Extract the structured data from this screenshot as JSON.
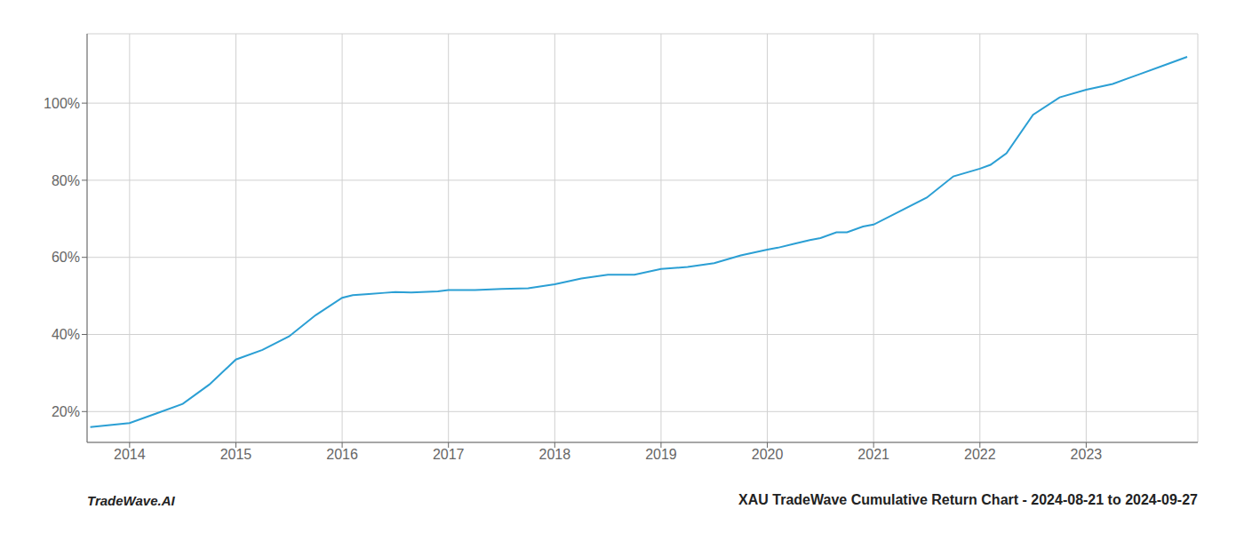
{
  "chart_data": {
    "type": "line",
    "x": [
      2013.63,
      2014.0,
      2014.25,
      2014.5,
      2014.75,
      2015.0,
      2015.25,
      2015.5,
      2015.75,
      2016.0,
      2016.1,
      2016.25,
      2016.4,
      2016.5,
      2016.65,
      2016.75,
      2016.9,
      2017.0,
      2017.25,
      2017.5,
      2017.75,
      2018.0,
      2018.25,
      2018.5,
      2018.75,
      2019.0,
      2019.25,
      2019.5,
      2019.75,
      2020.0,
      2020.1,
      2020.25,
      2020.4,
      2020.5,
      2020.65,
      2020.75,
      2020.9,
      2021.0,
      2021.25,
      2021.5,
      2021.75,
      2022.0,
      2022.1,
      2022.25,
      2022.5,
      2022.75,
      2023.0,
      2023.25,
      2023.5,
      2023.75,
      2023.95
    ],
    "values": [
      16.0,
      17.0,
      19.5,
      22.0,
      27.0,
      33.5,
      36.0,
      39.5,
      45.0,
      49.5,
      50.2,
      50.5,
      50.8,
      51.0,
      50.9,
      51.0,
      51.2,
      51.5,
      51.5,
      51.8,
      52.0,
      53.0,
      54.5,
      55.5,
      55.5,
      57.0,
      57.5,
      58.5,
      60.5,
      62.0,
      62.5,
      63.5,
      64.5,
      65.0,
      66.5,
      66.5,
      68.0,
      68.5,
      72.0,
      75.5,
      81.0,
      83.0,
      84.0,
      87.0,
      97.0,
      101.5,
      103.5,
      105.0,
      107.5,
      110.0,
      112.0
    ],
    "color": "#2b9fd4",
    "xlim": [
      2013.6,
      2024.05
    ],
    "xticks": [
      2014,
      2015,
      2016,
      2017,
      2018,
      2019,
      2020,
      2021,
      2022,
      2023
    ],
    "ylim": [
      12,
      118
    ],
    "yticks": [
      {
        "value": 20,
        "label": "20%"
      },
      {
        "value": 40,
        "label": "40%"
      },
      {
        "value": 60,
        "label": "60%"
      },
      {
        "value": 80,
        "label": "80%"
      },
      {
        "value": 100,
        "label": "100%"
      }
    ],
    "grid": true,
    "annotations": [
      "TradeWave.AI",
      "XAU TradeWave Cumulative Return Chart - 2024-08-21 to 2024-09-27"
    ]
  }
}
